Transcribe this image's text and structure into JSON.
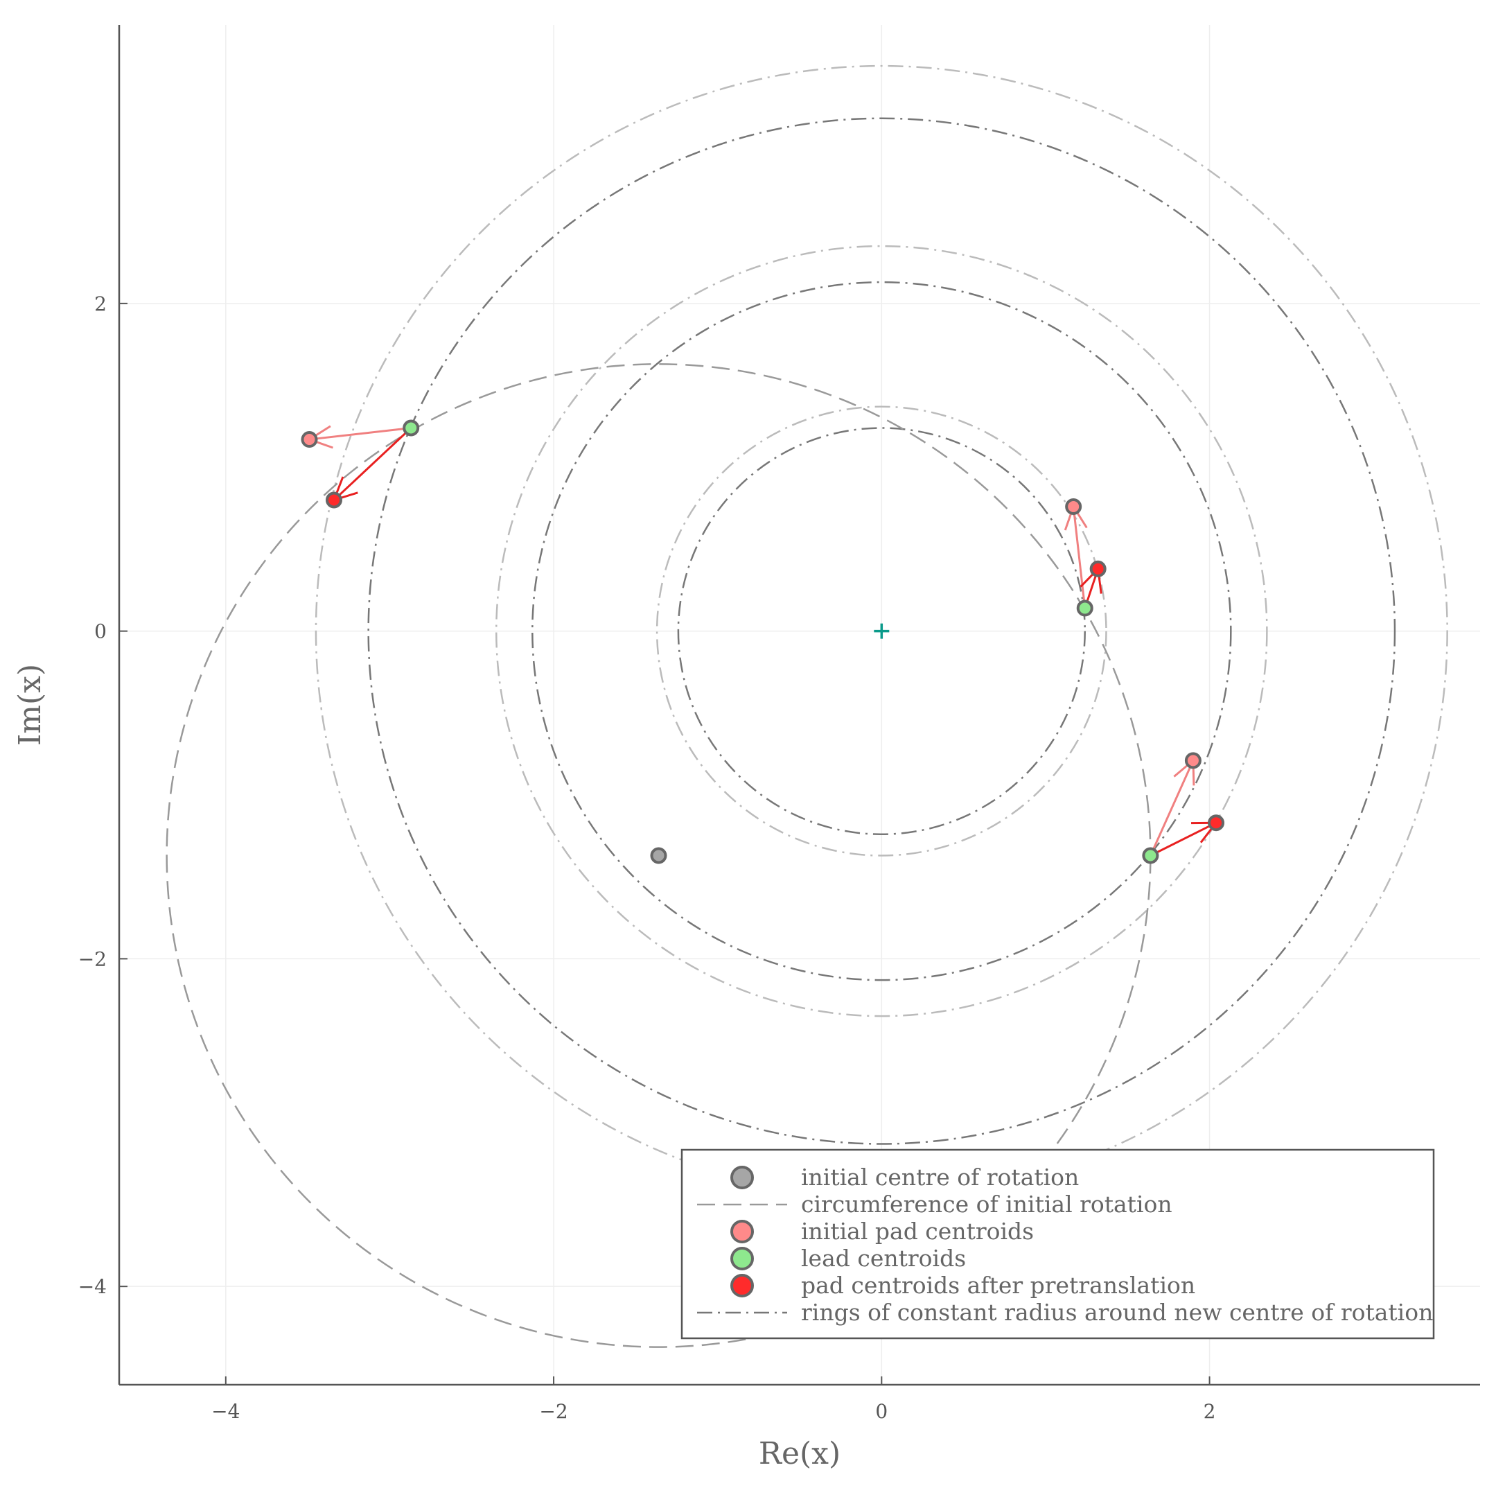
{
  "chart_data": {
    "type": "scatter",
    "title": "",
    "xlabel": "Re(x)",
    "ylabel": "Im(x)",
    "xlim": [
      -4.65,
      3.65
    ],
    "ylim": [
      -4.6,
      3.7
    ],
    "x_ticks": [
      -4,
      -2,
      0,
      2
    ],
    "y_ticks": [
      -4,
      -2,
      0,
      2
    ],
    "x_tick_labels": [
      "−4",
      "−2",
      "0",
      "2"
    ],
    "y_tick_labels": [
      "−4",
      "−2",
      "0",
      "2"
    ],
    "grid": true,
    "legend_position": "bottom-right",
    "colors": {
      "axis": "#555555",
      "grid": "#eeeeee",
      "initial_centre": "#a6a6a6",
      "marker_edge": "#666666",
      "initial_pad": "#ff8a8a",
      "lead": "#8ee88e",
      "pretranslated_pad": "#ff2b2b",
      "arrow_initial": "#f08080",
      "arrow_pretranslated": "#e82020",
      "circumference": "#999999",
      "ring_dark": "#777777",
      "ring_light": "#bbbbbb",
      "new_centre": "#0a9a8a"
    },
    "new_centre": [
      0,
      0
    ],
    "initial_centre": [
      -1.36,
      -1.37
    ],
    "initial_rotation_radius": 3.0,
    "lead_centroids": [
      [
        -2.87,
        1.24
      ],
      [
        1.24,
        0.14
      ],
      [
        1.64,
        -1.37
      ]
    ],
    "initial_pad_centroids": [
      [
        -3.49,
        1.17
      ],
      [
        1.17,
        0.76
      ],
      [
        1.9,
        -0.79
      ]
    ],
    "pad_centroids_after_pretranslation": [
      [
        -3.34,
        0.8
      ],
      [
        1.32,
        0.38
      ],
      [
        2.04,
        -1.17
      ]
    ],
    "rings": [
      {
        "radius": 1.24,
        "style": "dark"
      },
      {
        "radius": 1.37,
        "style": "light"
      },
      {
        "radius": 2.13,
        "style": "dark"
      },
      {
        "radius": 2.35,
        "style": "light"
      },
      {
        "radius": 3.13,
        "style": "dark"
      },
      {
        "radius": 3.45,
        "style": "light"
      }
    ],
    "legend": [
      {
        "label": "initial centre of rotation",
        "kind": "marker",
        "color_key": "initial_centre"
      },
      {
        "label": "circumference of initial rotation",
        "kind": "dashed",
        "color_key": "circumference"
      },
      {
        "label": "initial pad centroids",
        "kind": "marker",
        "color_key": "initial_pad"
      },
      {
        "label": "lead centroids",
        "kind": "marker",
        "color_key": "lead"
      },
      {
        "label": "pad centroids after pretranslation",
        "kind": "marker",
        "color_key": "pretranslated_pad"
      },
      {
        "label": "rings of constant radius around new centre of rotation",
        "kind": "dashdot",
        "color_key": "ring_dark"
      }
    ]
  }
}
